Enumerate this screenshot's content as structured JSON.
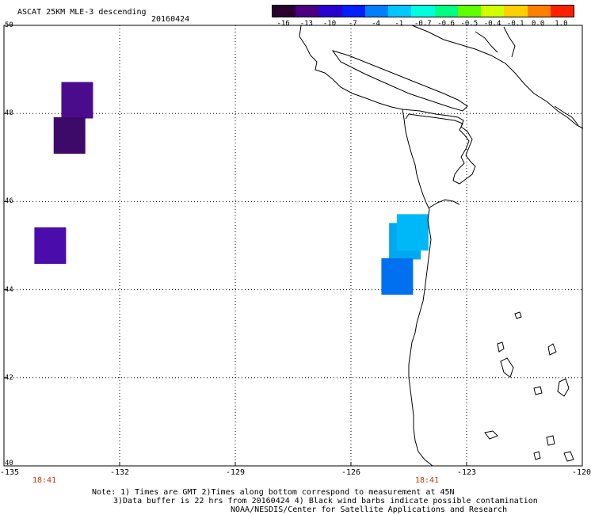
{
  "header": {
    "title": "ASCAT 25KM MLE-3 descending",
    "date": "20160424"
  },
  "colorbar": {
    "colors": [
      "#2a0033",
      "#4a0080",
      "#2a00d0",
      "#0020ff",
      "#0080ff",
      "#00c8ff",
      "#00ffe0",
      "#00ff80",
      "#60ff00",
      "#d0ff00",
      "#ffd000",
      "#ff8000",
      "#ff2000"
    ],
    "labels": [
      "-16",
      "-13",
      "-10",
      "-7",
      "-4",
      "-1",
      "-0.7",
      "-0.6",
      "-0.5",
      "-0.4",
      "-0.1",
      "0.0",
      "1.0"
    ]
  },
  "axes": {
    "x_ticks": [
      "-135",
      "-132",
      "-129",
      "-126",
      "-123",
      "-120"
    ],
    "y_ticks": [
      "50",
      "48",
      "46",
      "44",
      "42",
      "40"
    ],
    "lon_range": [
      -135,
      -120
    ],
    "lat_range": [
      40,
      50
    ]
  },
  "times": {
    "t1": "18:41",
    "t2": "18:41",
    "color": "#cc3300"
  },
  "cells": [
    {
      "lon": -133.1,
      "lat": 48.3,
      "color": "#4a0c8c"
    },
    {
      "lon": -133.3,
      "lat": 47.5,
      "color": "#3e0a6a"
    },
    {
      "lon": -133.8,
      "lat": 45.0,
      "color": "#4a0caa"
    },
    {
      "lon": -124.6,
      "lat": 45.1,
      "color": "#00a8f0"
    },
    {
      "lon": -124.4,
      "lat": 45.3,
      "color": "#00b8f8"
    },
    {
      "lon": -124.8,
      "lat": 44.3,
      "color": "#0070f0"
    }
  ],
  "notes": {
    "line1": "Note: 1) Times are GMT 2)Times along bottom correspond to measurement at 45N",
    "line2": "3)Data buffer is 22 hrs from 20160424 4) Black wind barbs indicate possible contamination",
    "line3": "NOAA/NESDIS/Center for Satellite Applications and Research"
  }
}
